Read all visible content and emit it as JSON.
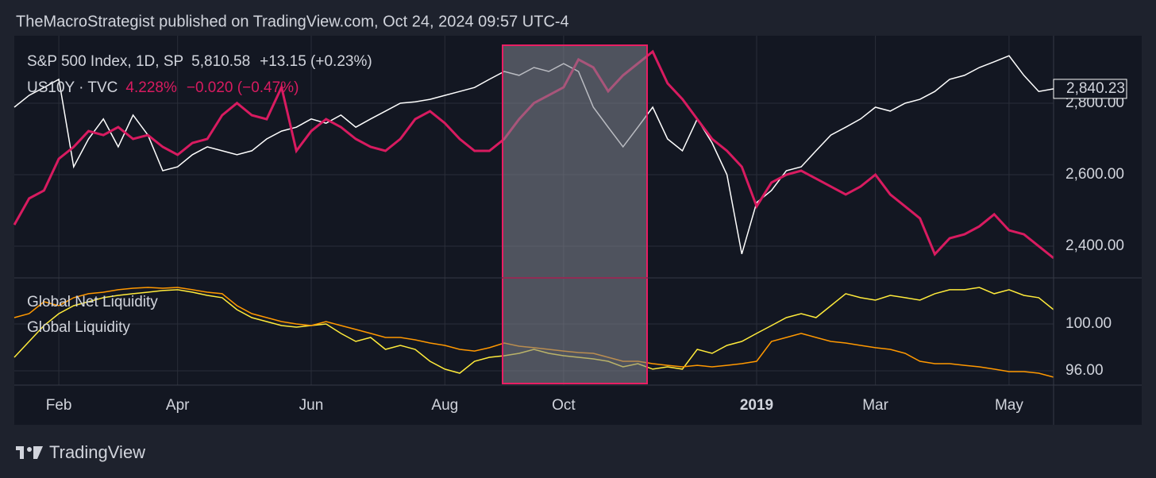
{
  "header": {
    "text": "TheMacroStrategist published on TradingView.com, Oct 24, 2024 09:57 UTC-4"
  },
  "footer": {
    "brand": "TradingView"
  },
  "chart_data": [
    {
      "type": "line",
      "grid": true,
      "ylim": [
        2311,
        2989
      ],
      "yticks": [
        {
          "value": 2400,
          "label": "2,400.00"
        },
        {
          "value": 2600,
          "label": "2,600.00"
        },
        {
          "value": 2800,
          "label": "2,800.00"
        }
      ],
      "y2lim": [
        2.269,
        3.308
      ],
      "series": [
        {
          "name": "S&P 500 Index, 1D, SP",
          "quote": "5,810.58",
          "change": "+13.15 (+0.23%)",
          "price_label": "2,840.23",
          "color": "#ffffff",
          "values": [
            2789,
            2822,
            2844,
            2867,
            2622,
            2700,
            2756,
            2678,
            2767,
            2711,
            2611,
            2622,
            2656,
            2678,
            2667,
            2656,
            2667,
            2700,
            2722,
            2733,
            2756,
            2744,
            2767,
            2733,
            2756,
            2778,
            2800,
            2804,
            2811,
            2822,
            2833,
            2844,
            2867,
            2889,
            2878,
            2900,
            2889,
            2911,
            2889,
            2789,
            2733,
            2678,
            2733,
            2789,
            2700,
            2667,
            2756,
            2689,
            2600,
            2378,
            2522,
            2556,
            2611,
            2622,
            2667,
            2711,
            2733,
            2756,
            2789,
            2778,
            2800,
            2811,
            2833,
            2867,
            2878,
            2900,
            2916,
            2933,
            2878,
            2833,
            2840.23
          ]
        },
        {
          "name": "US10Y · TVC",
          "quote": "4.228%",
          "change": "−0.020 (−0.47%)",
          "color": "#d81b60",
          "axis": "y2",
          "values": [
            2.497,
            2.61,
            2.644,
            2.78,
            2.831,
            2.899,
            2.882,
            2.916,
            2.865,
            2.882,
            2.831,
            2.797,
            2.848,
            2.865,
            2.967,
            3.019,
            2.967,
            2.95,
            3.087,
            2.814,
            2.899,
            2.95,
            2.916,
            2.865,
            2.831,
            2.814,
            2.865,
            2.95,
            2.984,
            2.933,
            2.865,
            2.814,
            2.814,
            2.865,
            2.95,
            3.019,
            3.053,
            3.087,
            3.206,
            3.172,
            3.07,
            3.138,
            3.189,
            3.24,
            3.104,
            3.036,
            2.95,
            2.865,
            2.814,
            2.746,
            2.576,
            2.678,
            2.712,
            2.729,
            2.695,
            2.661,
            2.627,
            2.661,
            2.712,
            2.627,
            2.576,
            2.524,
            2.371,
            2.439,
            2.456,
            2.49,
            2.542,
            2.473,
            2.456,
            2.405,
            2.354
          ]
        }
      ]
    },
    {
      "type": "line",
      "grid": true,
      "ylim": [
        94.78,
        103.93
      ],
      "yticks": [
        {
          "value": 96,
          "label": "96.00"
        },
        {
          "value": 100,
          "label": "100.00"
        }
      ],
      "categories": [
        null,
        null,
        null,
        "Feb",
        null,
        null,
        null,
        null,
        null,
        null,
        null,
        "Apr",
        null,
        null,
        null,
        null,
        null,
        null,
        null,
        null,
        "Jun",
        null,
        null,
        null,
        null,
        null,
        null,
        null,
        null,
        "Aug",
        null,
        null,
        null,
        null,
        null,
        null,
        null,
        "Oct",
        null,
        null,
        null,
        null,
        null,
        null,
        null,
        null,
        null,
        null,
        null,
        null,
        "2019",
        null,
        null,
        null,
        null,
        null,
        null,
        null,
        "Mar",
        null,
        null,
        null,
        null,
        null,
        null,
        null,
        null,
        "May",
        null,
        null,
        null
      ],
      "series": [
        {
          "name": "Global Net Liquidity",
          "color": "#ffeb3b",
          "values": [
            97.15,
            98.51,
            99.86,
            100.88,
            101.56,
            101.9,
            102.24,
            102.44,
            102.58,
            102.71,
            102.85,
            102.92,
            102.71,
            102.44,
            102.24,
            101.22,
            100.54,
            100.2,
            99.86,
            99.73,
            99.86,
            100,
            99.19,
            98.51,
            98.85,
            97.83,
            98.17,
            97.83,
            96.81,
            96.14,
            95.8,
            96.81,
            97.15,
            97.29,
            97.49,
            97.83,
            97.49,
            97.29,
            97.15,
            97.02,
            96.81,
            96.34,
            96.61,
            96.14,
            96.34,
            96.14,
            97.83,
            97.49,
            98.17,
            98.51,
            99.19,
            99.86,
            100.54,
            100.88,
            100.54,
            101.56,
            102.58,
            102.24,
            102.03,
            102.44,
            102.24,
            102.03,
            102.58,
            102.92,
            102.92,
            103.12,
            102.58,
            102.92,
            102.44,
            102.24,
            101.22
          ]
        },
        {
          "name": "Global Liquidity",
          "color": "#ff9800",
          "values": [
            100.54,
            100.88,
            101.9,
            101.56,
            102.24,
            102.58,
            102.71,
            102.92,
            103.05,
            103.12,
            103.05,
            103.12,
            102.92,
            102.71,
            102.58,
            101.56,
            100.88,
            100.54,
            100.2,
            100,
            99.86,
            100.2,
            99.86,
            99.53,
            99.19,
            98.85,
            98.85,
            98.64,
            98.37,
            98.17,
            97.83,
            97.69,
            97.97,
            98.37,
            98.1,
            97.97,
            97.83,
            97.69,
            97.56,
            97.49,
            97.15,
            96.81,
            96.81,
            96.61,
            96.47,
            96.34,
            96.47,
            96.34,
            96.47,
            96.61,
            96.81,
            98.51,
            98.85,
            99.19,
            98.85,
            98.51,
            98.37,
            98.17,
            97.97,
            97.83,
            97.49,
            96.81,
            96.61,
            96.61,
            96.47,
            96.34,
            96.14,
            95.93,
            95.93,
            95.8,
            95.46
          ]
        }
      ]
    }
  ]
}
